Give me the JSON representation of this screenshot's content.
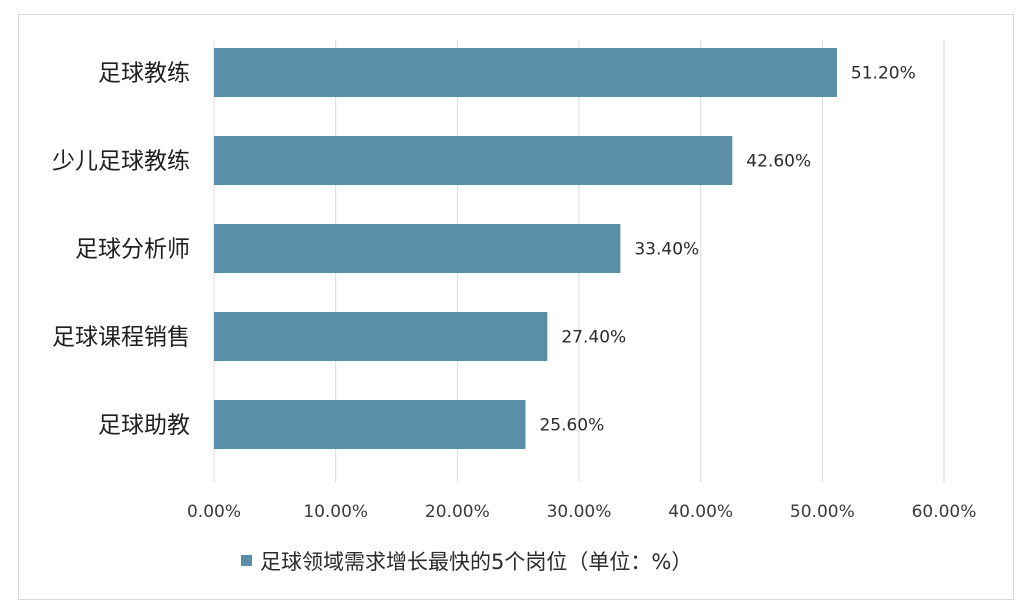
{
  "chart_data": {
    "type": "bar",
    "orientation": "horizontal",
    "categories": [
      "足球教练",
      "少儿足球教练",
      "足球分析师",
      "足球课程销售",
      "足球助教"
    ],
    "values": [
      51.2,
      42.6,
      33.4,
      27.4,
      25.6
    ],
    "value_labels": [
      "51.20%",
      "42.60%",
      "33.40%",
      "27.40%",
      "25.60%"
    ],
    "series": [
      {
        "name": "足球领域需求增长最快的5个岗位（单位：%）",
        "values": [
          51.2,
          42.6,
          33.4,
          27.4,
          25.6
        ]
      }
    ],
    "xlim": [
      0,
      60
    ],
    "x_ticks": [
      0,
      10,
      20,
      30,
      40,
      50,
      60
    ],
    "x_tick_labels": [
      "0.00%",
      "10.00%",
      "20.00%",
      "30.00%",
      "40.00%",
      "50.00%",
      "60.00%"
    ],
    "grid": true,
    "legend_placement": "bottom",
    "bar_color": "#5b8fa8"
  }
}
